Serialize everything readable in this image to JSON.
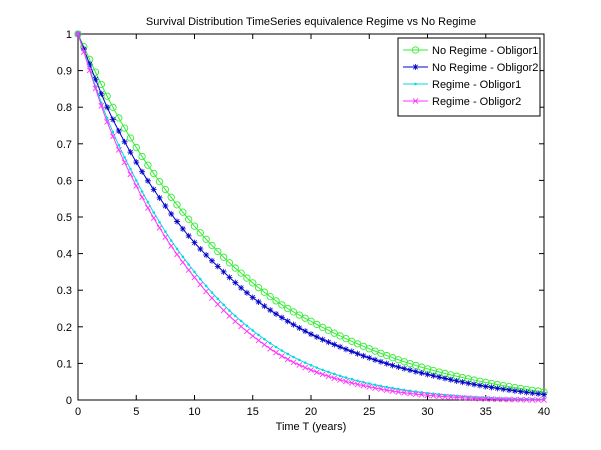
{
  "chart_data": {
    "type": "line",
    "title": "Survival Distribution TimeSeries equivalence Regime vs No Regime",
    "xlabel": "Time  T (years)",
    "ylabel": "",
    "xlim": [
      0,
      40
    ],
    "ylim": [
      0,
      1
    ],
    "xticks": [
      "0",
      "5",
      "10",
      "15",
      "20",
      "25",
      "30",
      "35",
      "40"
    ],
    "yticks": [
      "0",
      "0.1",
      "0.2",
      "0.3",
      "0.4",
      "0.5",
      "0.6",
      "0.7",
      "0.8",
      "0.9",
      "1"
    ],
    "grid": false,
    "legend_position": "top-right",
    "x": [
      0,
      2.5,
      5,
      7.5,
      10,
      12.5,
      15,
      17.5,
      20,
      22.5,
      25,
      27.5,
      30,
      32.5,
      35,
      37.5,
      40
    ],
    "series": [
      {
        "name": "No Regime - Obligor1",
        "color": "#33ee33",
        "marker": "circle",
        "values": [
          1.0,
          0.83,
          0.69,
          0.575,
          0.475,
          0.39,
          0.32,
          0.26,
          0.215,
          0.175,
          0.14,
          0.11,
          0.085,
          0.065,
          0.048,
          0.034,
          0.022
        ]
      },
      {
        "name": "No Regime - Obligor2",
        "color": "#0000cc",
        "marker": "star",
        "values": [
          1.0,
          0.8,
          0.65,
          0.53,
          0.43,
          0.35,
          0.28,
          0.225,
          0.18,
          0.145,
          0.115,
          0.09,
          0.07,
          0.052,
          0.037,
          0.025,
          0.015
        ]
      },
      {
        "name": "Regime - Obligor1",
        "color": "#00dddd",
        "marker": "dot",
        "values": [
          1.0,
          0.77,
          0.6,
          0.46,
          0.35,
          0.26,
          0.19,
          0.135,
          0.095,
          0.066,
          0.045,
          0.03,
          0.019,
          0.011,
          0.006,
          0.003,
          0.001
        ]
      },
      {
        "name": "Regime - Obligor2",
        "color": "#ff33ff",
        "marker": "x",
        "values": [
          1.0,
          0.76,
          0.585,
          0.445,
          0.335,
          0.245,
          0.175,
          0.12,
          0.082,
          0.055,
          0.036,
          0.022,
          0.013,
          0.007,
          0.003,
          0.001,
          0.0
        ]
      }
    ]
  }
}
